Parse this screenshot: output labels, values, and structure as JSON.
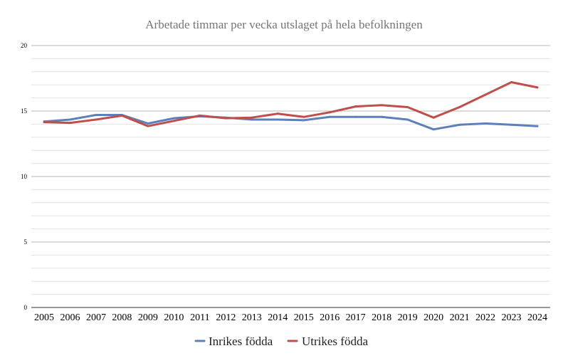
{
  "chart_data": {
    "type": "line",
    "title": "Arbetade timmar per vecka utslaget på hela befolkningen",
    "xlabel": "",
    "ylabel": "",
    "categories": [
      "2005",
      "2006",
      "2007",
      "2008",
      "2009",
      "2010",
      "2011",
      "2012",
      "2013",
      "2014",
      "2015",
      "2016",
      "2017",
      "2018",
      "2019",
      "2020",
      "2021",
      "2022",
      "2023",
      "2024"
    ],
    "yticks": [
      0,
      5,
      10,
      15,
      20
    ],
    "ylim": [
      0,
      20
    ],
    "minor_step": 1,
    "grid": true,
    "legend_position": "bottom-center",
    "series": [
      {
        "name": "Inrikes födda",
        "color": "#5b80bd",
        "values": [
          14.2,
          14.35,
          14.7,
          14.7,
          14.05,
          14.45,
          14.6,
          14.5,
          14.35,
          14.35,
          14.3,
          14.55,
          14.55,
          14.55,
          14.35,
          13.6,
          13.95,
          14.05,
          13.95,
          13.85
        ]
      },
      {
        "name": "Utrikes födda",
        "color": "#be4f4b",
        "values": [
          14.15,
          14.1,
          14.35,
          14.65,
          13.85,
          14.25,
          14.65,
          14.45,
          14.5,
          14.8,
          14.55,
          14.9,
          15.35,
          15.45,
          15.3,
          14.5,
          15.3,
          16.25,
          17.2,
          16.8
        ]
      }
    ]
  }
}
